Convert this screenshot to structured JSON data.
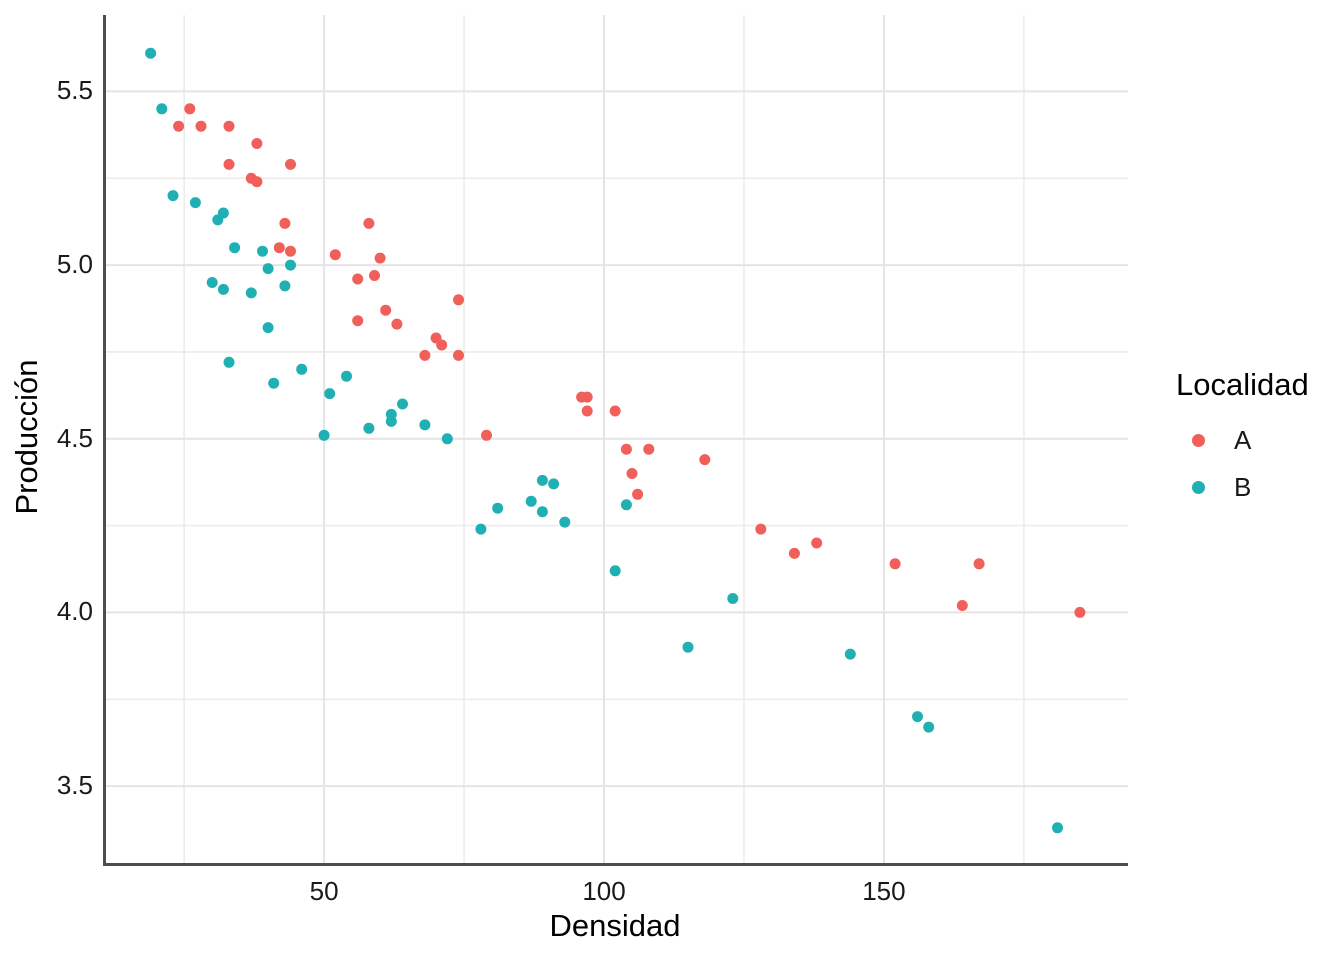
{
  "chart_data": {
    "type": "scatter",
    "title": "",
    "xlabel": "Densidad",
    "ylabel": "Producción",
    "legend_title": "Localidad",
    "legend_position": "right",
    "grid": true,
    "background": "#ffffff",
    "axis_line_color": "#4d4d4d",
    "major_grid_color": "#e4e4e4",
    "minor_grid_color": "#ececec",
    "tick_label_color": "#1a1a1a",
    "xlim": [
      10.5,
      193.6
    ],
    "ylim": [
      3.27,
      5.72
    ],
    "x_ticks": [
      {
        "v": 50,
        "label": "50"
      },
      {
        "v": 100,
        "label": "100"
      },
      {
        "v": 150,
        "label": "150"
      }
    ],
    "x_minor": [
      25,
      75,
      125,
      175
    ],
    "y_ticks": [
      {
        "v": 3.5,
        "label": "3.5"
      },
      {
        "v": 4.0,
        "label": "4.0"
      },
      {
        "v": 4.5,
        "label": "4.5"
      },
      {
        "v": 5.0,
        "label": "5.0"
      },
      {
        "v": 5.5,
        "label": "5.5"
      }
    ],
    "y_minor": [
      3.75,
      4.25,
      4.75,
      5.25
    ],
    "point_radius": 5.5,
    "series": [
      {
        "name": "A",
        "color": "#f05f5a",
        "points": [
          [
            26,
            5.45
          ],
          [
            24,
            5.4
          ],
          [
            28,
            5.4
          ],
          [
            33,
            5.4
          ],
          [
            38,
            5.35
          ],
          [
            33,
            5.29
          ],
          [
            44,
            5.29
          ],
          [
            37,
            5.25
          ],
          [
            38,
            5.24
          ],
          [
            43,
            5.12
          ],
          [
            58,
            5.12
          ],
          [
            42,
            5.05
          ],
          [
            44,
            5.04
          ],
          [
            52,
            5.03
          ],
          [
            60,
            5.02
          ],
          [
            56,
            4.96
          ],
          [
            59,
            4.97
          ],
          [
            74,
            4.9
          ],
          [
            61,
            4.87
          ],
          [
            56,
            4.84
          ],
          [
            63,
            4.83
          ],
          [
            70,
            4.79
          ],
          [
            71,
            4.77
          ],
          [
            68,
            4.74
          ],
          [
            74,
            4.74
          ],
          [
            96,
            4.62
          ],
          [
            97,
            4.62
          ],
          [
            97,
            4.58
          ],
          [
            102,
            4.58
          ],
          [
            79,
            4.51
          ],
          [
            104,
            4.47
          ],
          [
            108,
            4.47
          ],
          [
            105,
            4.4
          ],
          [
            118,
            4.44
          ],
          [
            106,
            4.34
          ],
          [
            128,
            4.24
          ],
          [
            134,
            4.17
          ],
          [
            138,
            4.2
          ],
          [
            152,
            4.14
          ],
          [
            167,
            4.14
          ],
          [
            164,
            4.02
          ],
          [
            185,
            4.0
          ]
        ]
      },
      {
        "name": "B",
        "color": "#20b0b4",
        "points": [
          [
            19,
            5.61
          ],
          [
            21,
            5.45
          ],
          [
            23,
            5.2
          ],
          [
            27,
            5.18
          ],
          [
            32,
            5.15
          ],
          [
            31,
            5.13
          ],
          [
            34,
            5.05
          ],
          [
            39,
            5.04
          ],
          [
            44,
            5.0
          ],
          [
            40,
            4.99
          ],
          [
            30,
            4.95
          ],
          [
            43,
            4.94
          ],
          [
            32,
            4.93
          ],
          [
            37,
            4.92
          ],
          [
            40,
            4.82
          ],
          [
            33,
            4.72
          ],
          [
            46,
            4.7
          ],
          [
            54,
            4.68
          ],
          [
            41,
            4.66
          ],
          [
            51,
            4.63
          ],
          [
            64,
            4.6
          ],
          [
            62,
            4.57
          ],
          [
            62,
            4.55
          ],
          [
            58,
            4.53
          ],
          [
            68,
            4.54
          ],
          [
            50,
            4.51
          ],
          [
            72,
            4.5
          ],
          [
            89,
            4.38
          ],
          [
            91,
            4.37
          ],
          [
            87,
            4.32
          ],
          [
            81,
            4.3
          ],
          [
            89,
            4.29
          ],
          [
            93,
            4.26
          ],
          [
            78,
            4.24
          ],
          [
            104,
            4.31
          ],
          [
            102,
            4.12
          ],
          [
            123,
            4.04
          ],
          [
            115,
            3.9
          ],
          [
            144,
            3.88
          ],
          [
            156,
            3.7
          ],
          [
            158,
            3.67
          ],
          [
            181,
            3.38
          ]
        ]
      }
    ]
  }
}
